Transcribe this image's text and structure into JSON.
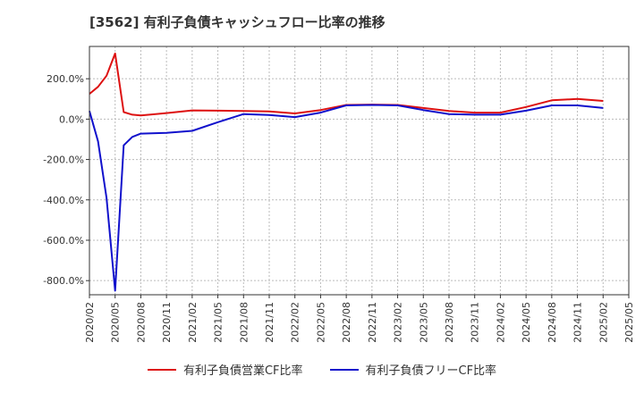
{
  "title": "[3562]  有利子負債キャッシュフロー比率の推移",
  "chart_data": {
    "type": "line",
    "title": "[3562]  有利子負債キャッシュフロー比率の推移",
    "xlabel": "",
    "ylabel": "",
    "x_ticks": [
      "2020/02",
      "2020/05",
      "2020/08",
      "2020/11",
      "2021/02",
      "2021/05",
      "2021/08",
      "2021/11",
      "2022/02",
      "2022/05",
      "2022/08",
      "2022/11",
      "2023/02",
      "2023/05",
      "2023/08",
      "2023/11",
      "2024/02",
      "2024/05",
      "2024/08",
      "2024/11",
      "2025/02",
      "2025/05"
    ],
    "y_ticks": [
      {
        "value": 200,
        "label": "200.0%"
      },
      {
        "value": 0,
        "label": "0.0%"
      },
      {
        "value": -200,
        "label": "-200.0%"
      },
      {
        "value": -400,
        "label": "-400.0%"
      },
      {
        "value": -600,
        "label": "-600.0%"
      },
      {
        "value": -800,
        "label": "-800.0%"
      }
    ],
    "ylim": [
      -870,
      360
    ],
    "xlim": [
      "2020/02",
      "2025/05"
    ],
    "grid": true,
    "legend_position": "bottom",
    "series": [
      {
        "name": "有利子負債営業CF比率",
        "color": "#dd1111",
        "points": [
          [
            "2020/02",
            125
          ],
          [
            "2020/03",
            160
          ],
          [
            "2020/04",
            215
          ],
          [
            "2020/05",
            325
          ],
          [
            "2020/06",
            35
          ],
          [
            "2020/07",
            22
          ],
          [
            "2020/08",
            18
          ],
          [
            "2020/11",
            30
          ],
          [
            "2021/02",
            43
          ],
          [
            "2021/05",
            42
          ],
          [
            "2021/08",
            40
          ],
          [
            "2021/11",
            38
          ],
          [
            "2022/02",
            28
          ],
          [
            "2022/05",
            45
          ],
          [
            "2022/08",
            70
          ],
          [
            "2022/11",
            72
          ],
          [
            "2023/02",
            70
          ],
          [
            "2023/05",
            55
          ],
          [
            "2023/08",
            40
          ],
          [
            "2023/11",
            32
          ],
          [
            "2024/02",
            32
          ],
          [
            "2024/05",
            60
          ],
          [
            "2024/08",
            93
          ],
          [
            "2024/11",
            100
          ],
          [
            "2025/02",
            90
          ]
        ]
      },
      {
        "name": "有利子負債フリーCF比率",
        "color": "#1111cc",
        "points": [
          [
            "2020/02",
            40
          ],
          [
            "2020/03",
            -110
          ],
          [
            "2020/04",
            -390
          ],
          [
            "2020/05",
            -850
          ],
          [
            "2020/06",
            -130
          ],
          [
            "2020/07",
            -88
          ],
          [
            "2020/08",
            -72
          ],
          [
            "2020/11",
            -68
          ],
          [
            "2021/02",
            -58
          ],
          [
            "2021/05",
            -15
          ],
          [
            "2021/08",
            25
          ],
          [
            "2021/11",
            20
          ],
          [
            "2022/02",
            10
          ],
          [
            "2022/05",
            32
          ],
          [
            "2022/08",
            68
          ],
          [
            "2022/11",
            70
          ],
          [
            "2023/02",
            68
          ],
          [
            "2023/05",
            45
          ],
          [
            "2023/08",
            25
          ],
          [
            "2023/11",
            22
          ],
          [
            "2024/02",
            22
          ],
          [
            "2024/05",
            42
          ],
          [
            "2024/08",
            68
          ],
          [
            "2024/11",
            68
          ],
          [
            "2025/02",
            55
          ]
        ]
      }
    ]
  }
}
